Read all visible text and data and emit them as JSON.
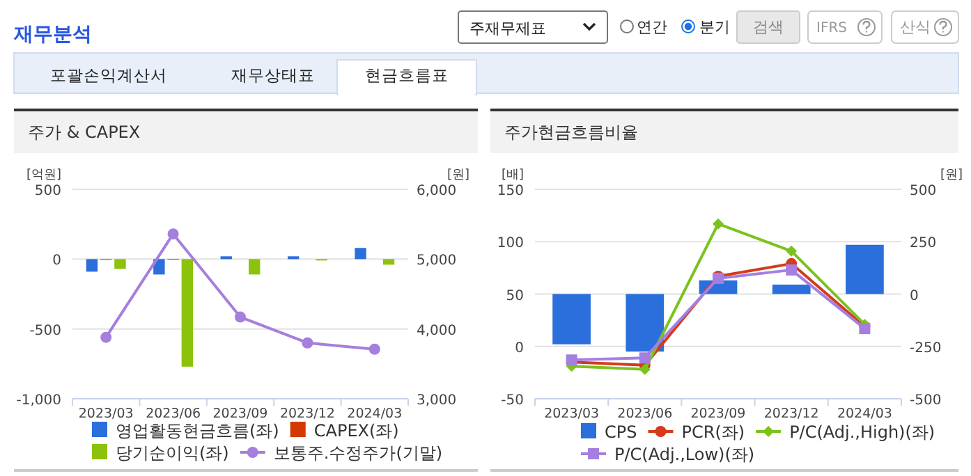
{
  "chart_data": [
    {
      "type": "other",
      "title": "재무분석",
      "annotations": [
        "주재무제표",
        "연간",
        "분기",
        "검색",
        "IFRS",
        "산식",
        "포괄손익계산서",
        "재무상태표",
        "현금흐름표"
      ]
    },
    {
      "type": "bar",
      "title": "주가 & CAPEX",
      "ylabel": "[억원]",
      "y2label": "[원]",
      "categories": [
        "2023/03",
        "2023/06",
        "2023/09",
        "2023/12",
        "2024/03"
      ],
      "series": [
        {
          "name": "영업활동현금흐름(좌)",
          "color": "#2a6fdb",
          "type": "bar",
          "values": [
            -90,
            -110,
            20,
            20,
            80
          ]
        },
        {
          "name": "CAPEX(좌)",
          "color": "#d43a00",
          "type": "bar",
          "values": [
            -5,
            -5,
            null,
            null,
            null
          ]
        },
        {
          "name": "당기순이익(좌)",
          "color": "#8cc20a",
          "type": "bar",
          "values": [
            -70,
            -770,
            -110,
            -10,
            -40
          ]
        },
        {
          "name": "보통주.수정주가(기말)",
          "color": "#a57fdc",
          "type": "line",
          "axis": "y2",
          "marker": "circle",
          "values": [
            3880,
            5360,
            4170,
            3800,
            3710
          ]
        }
      ],
      "ylim": [
        -1000,
        500
      ],
      "yticks": [
        {
          "value": -1000,
          "label": "-1,000"
        },
        -500,
        0,
        500
      ],
      "y2lim": [
        3000,
        6000
      ],
      "y2ticks": [
        {
          "value": 3000,
          "label": "3,000"
        },
        {
          "value": 4000,
          "label": "4,000"
        },
        {
          "value": 5000,
          "label": "5,000"
        },
        {
          "value": 6000,
          "label": "6,000"
        }
      ],
      "grid": "y",
      "legend": "bottom"
    },
    {
      "type": "line",
      "title": "주가현금흐름비율",
      "ylabel": "[배]",
      "y2label": "[원]",
      "categories": [
        "2023/03",
        "2023/06",
        "2023/09",
        "2023/12",
        "2024/03"
      ],
      "series": [
        {
          "name": "CPS",
          "color": "#2a6fdb",
          "type": "bar",
          "axis": "y2",
          "values": [
            -240,
            -275,
            65,
            45,
            235
          ]
        },
        {
          "name": "PCR(좌)",
          "color": "#d33b1a",
          "type": "line",
          "marker": "circle",
          "values": [
            -15,
            -18,
            67,
            79,
            19
          ]
        },
        {
          "name": "P/C(Adj.,High)(좌)",
          "color": "#7cc21f",
          "type": "line",
          "marker": "diamond",
          "values": [
            -19,
            -22,
            117,
            91,
            21
          ]
        },
        {
          "name": "P/C(Adj.,Low)(좌)",
          "color": "#a47fe0",
          "type": "line",
          "marker": "square",
          "values": [
            -13,
            -11,
            65,
            73,
            17
          ]
        }
      ],
      "ylim": [
        -50,
        150
      ],
      "yticks": [
        -50,
        0,
        50,
        100,
        150
      ],
      "y2lim": [
        -500,
        500
      ],
      "y2ticks": [
        -500,
        -250,
        0,
        250,
        500
      ],
      "grid": "y",
      "legend": "bottom"
    }
  ]
}
